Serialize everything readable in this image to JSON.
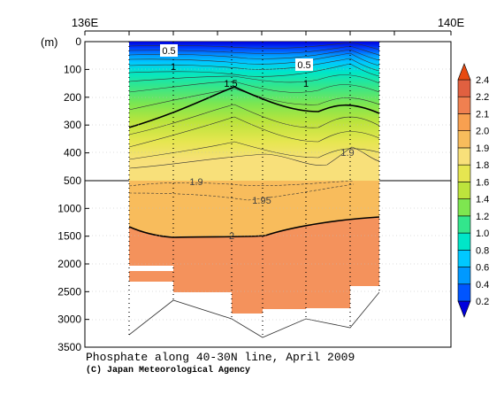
{
  "chart_data": {
    "type": "contour",
    "title": "Phosphate along 40-30N line, April 2009",
    "credit": "(C) Japan Meteorological Agency",
    "ylabel": "(m)",
    "x_ticks": [
      "136E",
      "140E"
    ],
    "y_ticks_upper": [
      "0",
      "100",
      "200",
      "300",
      "400",
      "500"
    ],
    "y_ticks_lower": [
      "1000",
      "1500",
      "2000",
      "2500",
      "3000",
      "3500"
    ],
    "ylim_upper": [
      0,
      500
    ],
    "ylim_lower": [
      500,
      3500
    ],
    "contour_labels": [
      "0.5",
      "0.5",
      "1",
      "1",
      "1.5",
      "1.9",
      "1.9",
      "1.95",
      "2"
    ],
    "colorbar": {
      "labels": [
        "0.2",
        "0.4",
        "0.6",
        "0.8",
        "1.0",
        "1.2",
        "1.4",
        "1.6",
        "1.8",
        "1.9",
        "2.0",
        "2.1",
        "2.2",
        "2.4"
      ],
      "colors": [
        "#0000dd",
        "#0055ff",
        "#0099ff",
        "#00c8ff",
        "#00e6c8",
        "#33e68c",
        "#7ee650",
        "#bde43c",
        "#e6e650",
        "#f8e07a",
        "#f8bc5c",
        "#f8a050",
        "#f08050",
        "#e06040",
        "#e84a10"
      ]
    }
  }
}
